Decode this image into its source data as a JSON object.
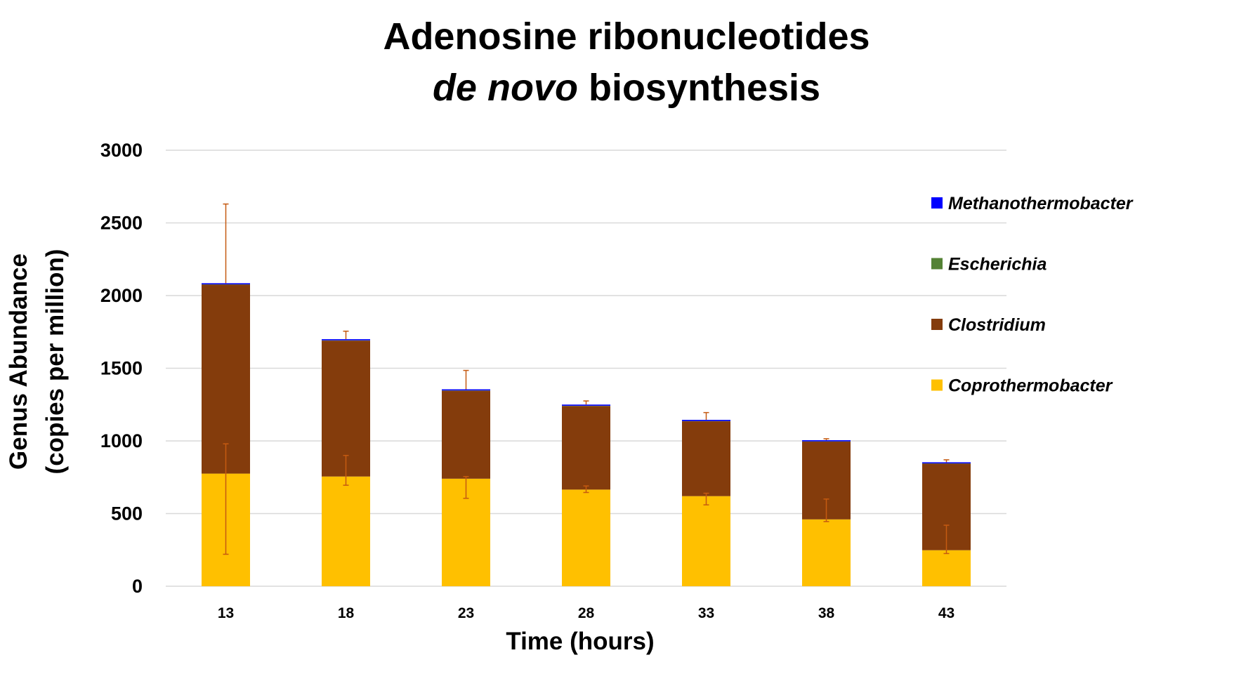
{
  "chart_data": {
    "type": "bar",
    "stacked": true,
    "title": {
      "line1": "Adenosine ribonucleotides",
      "line2_italic": "de novo",
      "line2_rest": " biosynthesis"
    },
    "xlabel": "Time (hours)",
    "ylabel_line1": "Genus Abundance",
    "ylabel_line2": "(copies per million)",
    "categories": [
      "13",
      "18",
      "23",
      "28",
      "33",
      "38",
      "43"
    ],
    "ylim": [
      0,
      3000
    ],
    "yticks": [
      "0",
      "500",
      "1000",
      "1500",
      "2000",
      "2500",
      "3000"
    ],
    "grid": true,
    "legend_position": "right",
    "series": [
      {
        "name": "Coprothermobacter",
        "color": "#FFC000",
        "values": [
          775,
          755,
          740,
          665,
          620,
          460,
          248
        ],
        "err_low": [
          220,
          695,
          605,
          645,
          560,
          445,
          225
        ],
        "err_high": [
          980,
          900,
          755,
          690,
          640,
          600,
          420
        ]
      },
      {
        "name": "Clostridium",
        "color": "#843C0C",
        "values": [
          1300,
          935,
          605,
          575,
          515,
          535,
          595
        ]
      },
      {
        "name": "Escherichia",
        "color": "#548235",
        "values": [
          2,
          2,
          2,
          2,
          2,
          2,
          2
        ]
      },
      {
        "name": "Methanothermobacter",
        "color": "#0000FF",
        "values": [
          8,
          8,
          8,
          8,
          8,
          8,
          8
        ]
      }
    ],
    "total_err_high": [
      2630,
      1755,
      1485,
      1275,
      1195,
      1015,
      870
    ],
    "error_bar_color": "#C55A11",
    "gridline_color": "#D9D9D9"
  }
}
